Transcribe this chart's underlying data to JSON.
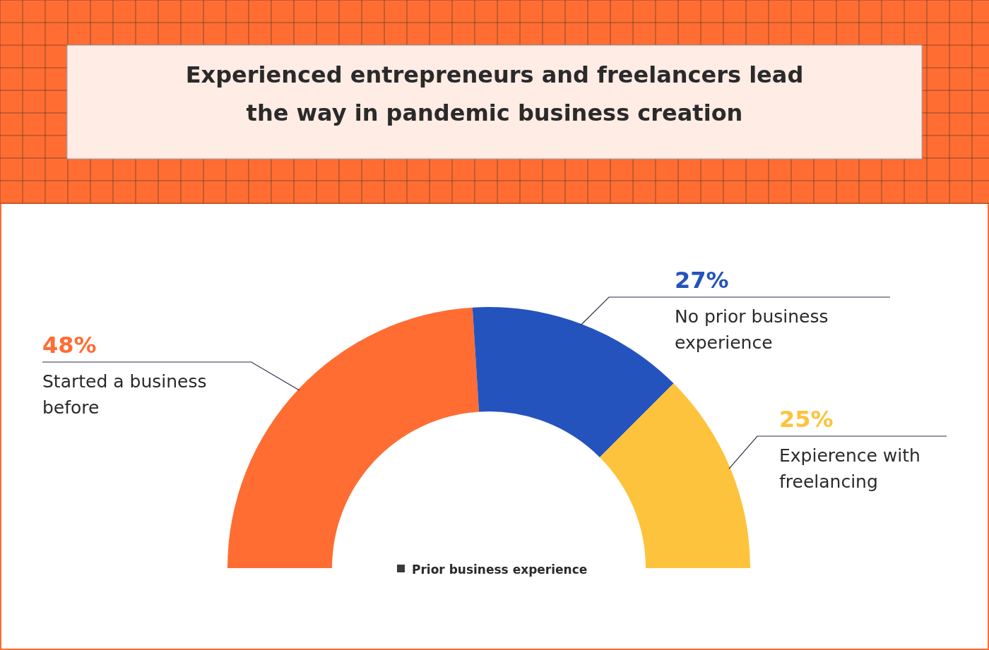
{
  "chart_data": {
    "type": "donut",
    "title": "Experienced entrepreneurs and freelancers lead the way in pandemic business creation",
    "categories": [
      "Started a business before",
      "No prior business experience",
      "Expierence with freelancing"
    ],
    "values": [
      48,
      27,
      25
    ],
    "colors": [
      "#ff6d33",
      "#2553bd",
      "#fec33c"
    ],
    "value_labels": [
      "48%",
      "27%",
      "25%"
    ],
    "legend_title": "Prior business experience"
  }
}
